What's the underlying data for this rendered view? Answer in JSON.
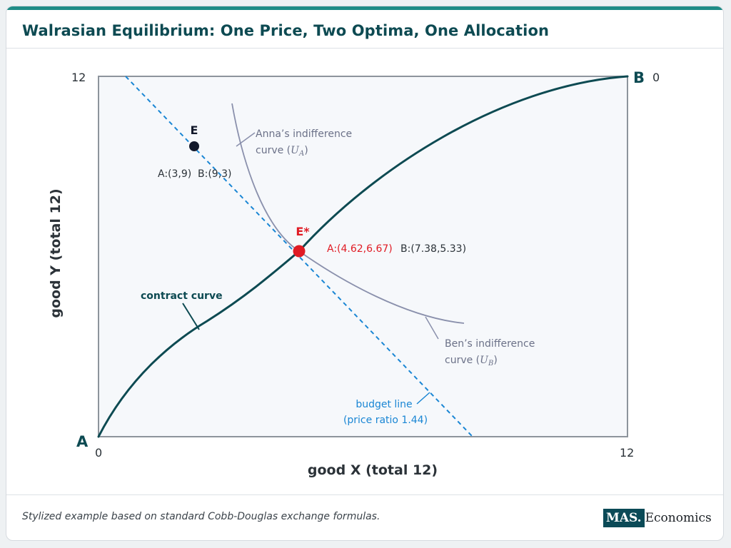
{
  "header": {
    "title": "Walrasian Equilibrium: One Price, Two Optima, One Allocation"
  },
  "footer": {
    "note": "Stylized example based on standard Cobb-Douglas exchange formulas.",
    "brand_box": "MAS.",
    "brand_text": "Economics"
  },
  "axes": {
    "x_title": "good X (total 12)",
    "y_title": "good Y (total 12)",
    "tick_x0": "0",
    "tick_x12": "12",
    "tick_y12": "12",
    "tick_b0": "0",
    "corner_a": "A",
    "corner_b": "B",
    "x_range": [
      0,
      12
    ],
    "y_range": [
      0,
      12
    ]
  },
  "points": {
    "endowment": {
      "label": "E",
      "alloc_a": "A:(3,9)",
      "alloc_b": "B:(9,3)",
      "x": 3,
      "y": 9
    },
    "equilibrium": {
      "label": "E*",
      "alloc_a": "A:(4.62,6.67)",
      "alloc_b": "B:(7.38,5.33)",
      "x": 4.62,
      "y": 6.67
    }
  },
  "curves": {
    "contract": {
      "label": "contract curve"
    },
    "budget": {
      "label_line1": "budget line",
      "label_line2": "(price ratio 1.44)",
      "price_ratio": 1.44
    },
    "anna": {
      "label_line1": "Anna’s indifference",
      "label_line2_prefix": "curve (",
      "label_symbol": "U",
      "label_subscript": "A",
      "label_line2_suffix": ")"
    },
    "ben": {
      "label_line1": "Ben’s indifference",
      "label_line2_prefix": "curve (",
      "label_symbol": "U",
      "label_subscript": "B",
      "label_line2_suffix": ")"
    }
  },
  "colors": {
    "contract": "#0d4a52",
    "budget": "#1a86d4",
    "indifference": "#8a90ac",
    "equilibrium": "#e01b24",
    "endowment": "#13192b",
    "box": "#8d949c",
    "box_fill": "#f6f8fb"
  }
}
